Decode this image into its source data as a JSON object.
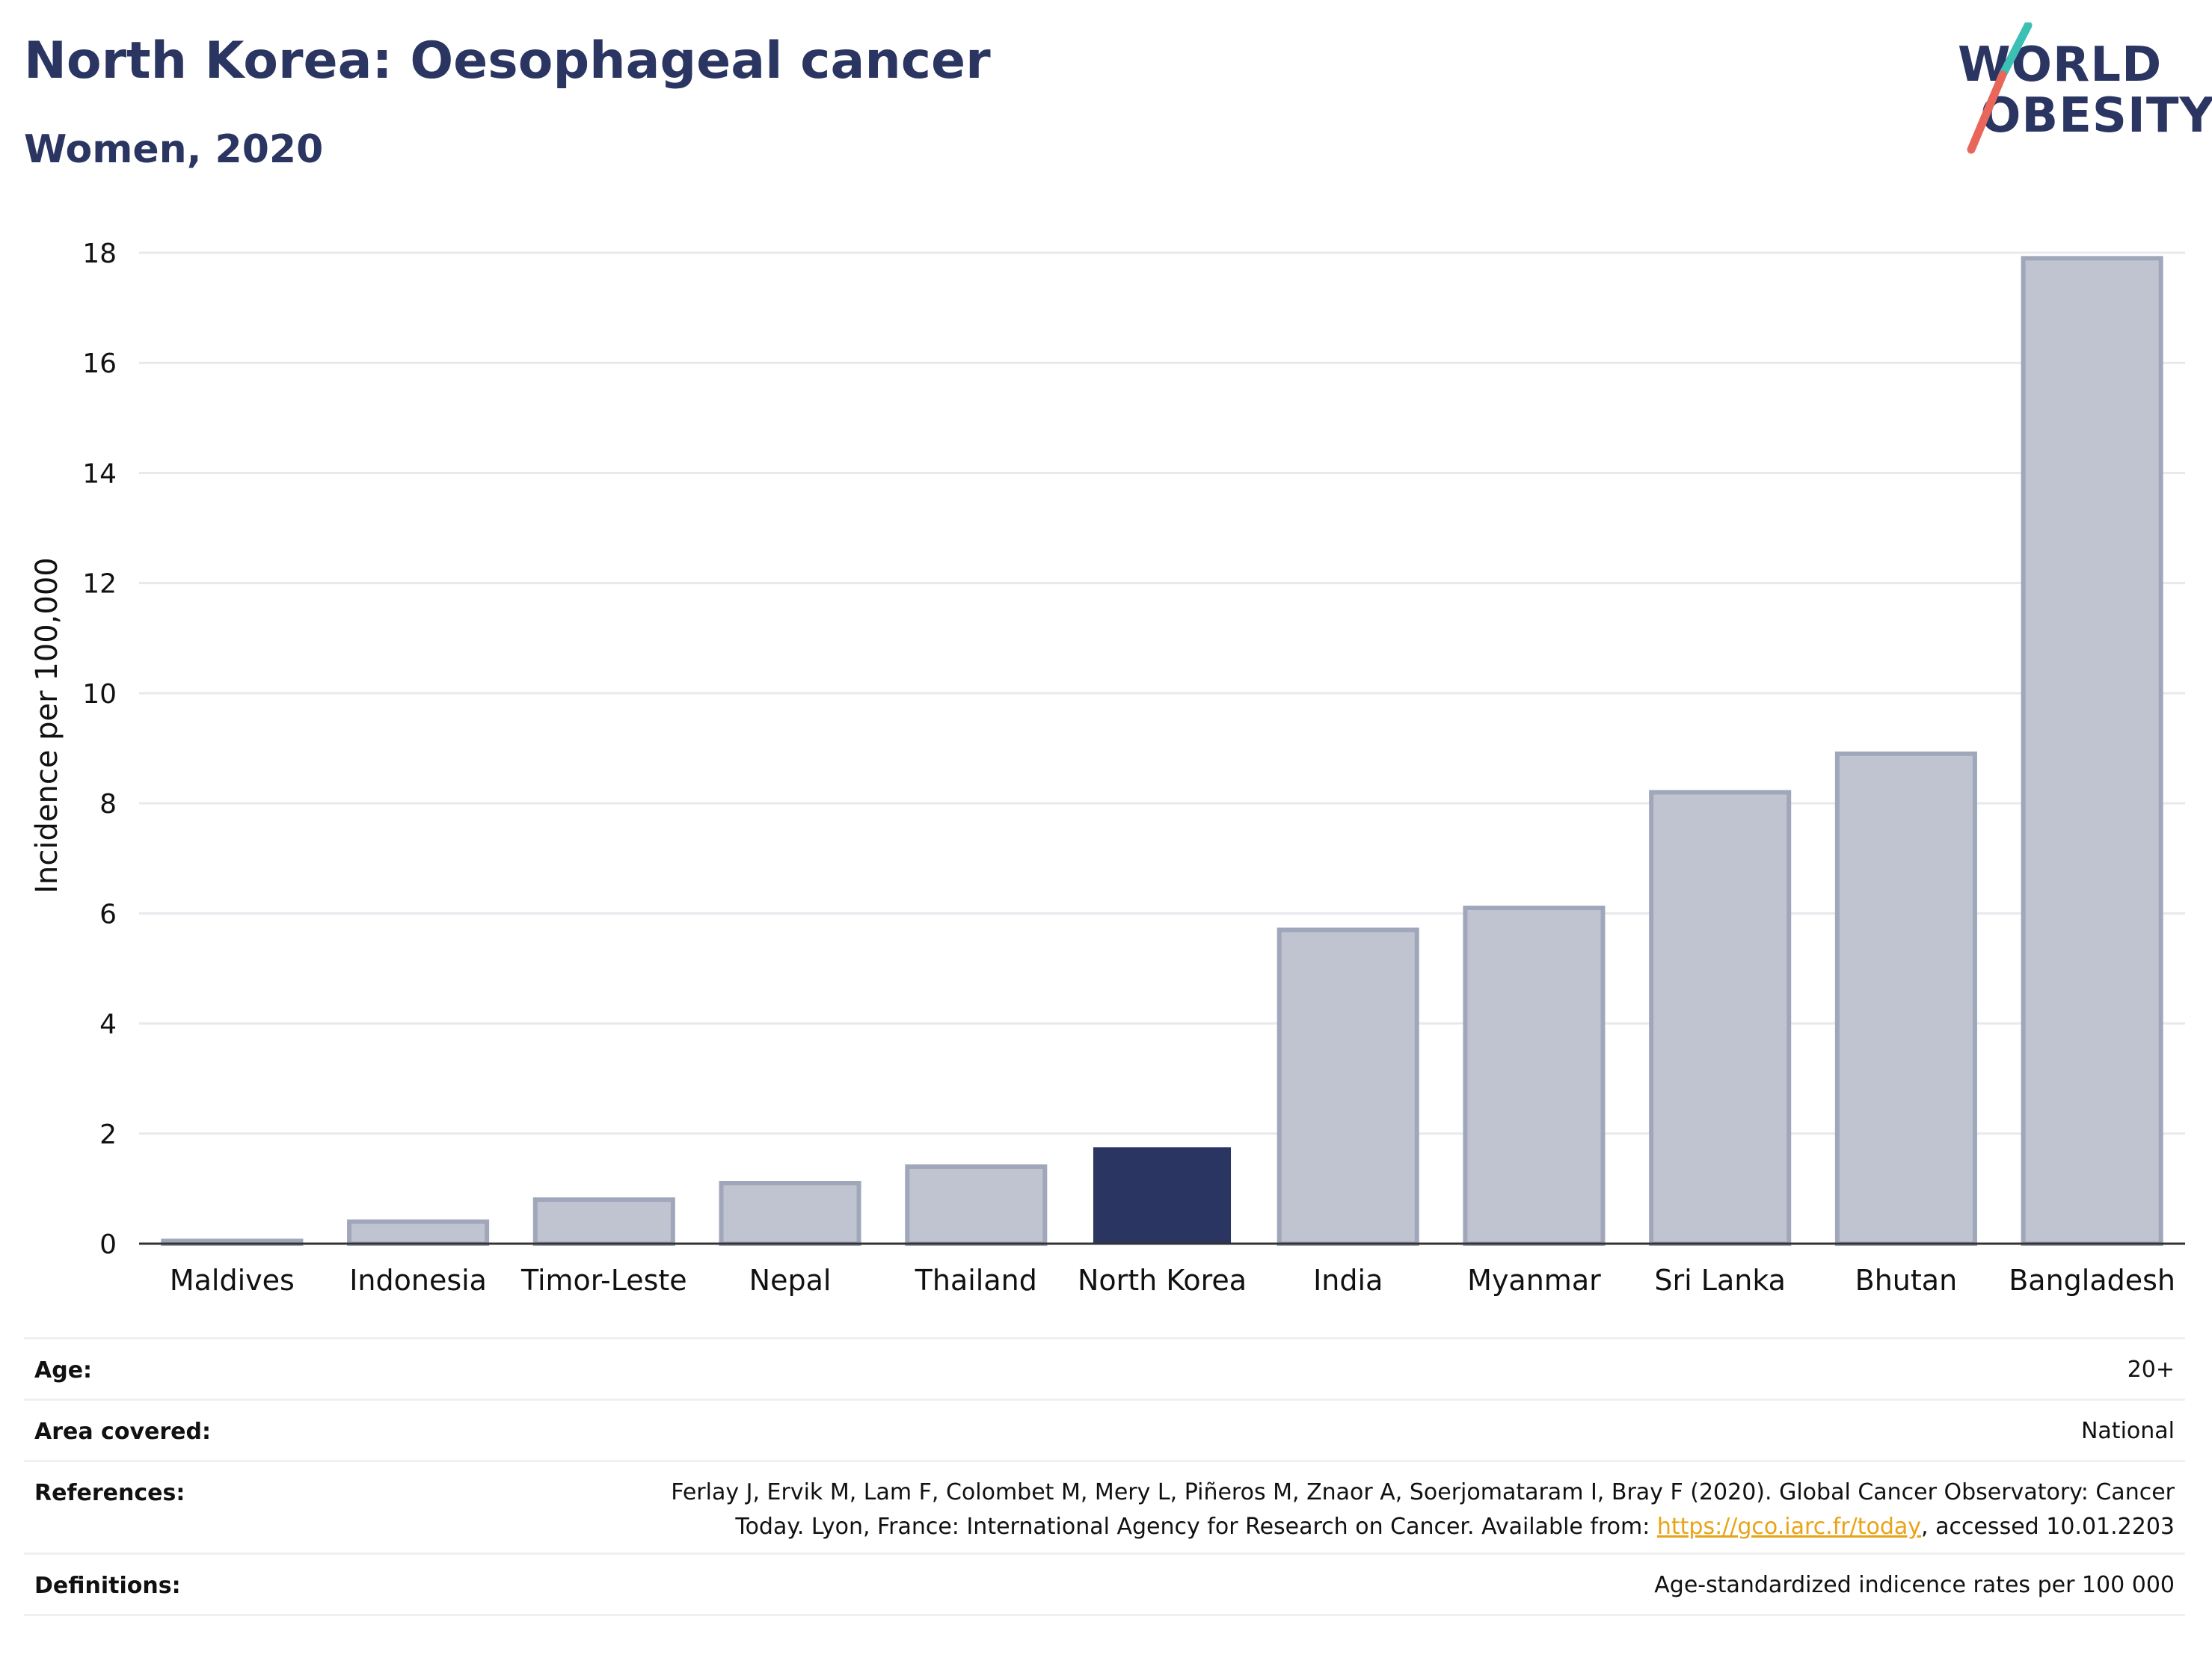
{
  "header": {
    "title": "North Korea: Oesophageal cancer",
    "subtitle": "Women, 2020"
  },
  "logo": {
    "line1": "WORLD",
    "line2": "OBESITY",
    "colors": {
      "text": "#2b3561",
      "slash_top": "#3cbfb4",
      "slash_bottom": "#e8675a"
    }
  },
  "chart_data": {
    "type": "bar",
    "categories": [
      "Maldives",
      "Indonesia",
      "Timor-Leste",
      "Nepal",
      "Thailand",
      "North Korea",
      "India",
      "Myanmar",
      "Sri Lanka",
      "Bhutan",
      "Bangladesh"
    ],
    "values": [
      0.05,
      0.4,
      0.8,
      1.1,
      1.4,
      1.75,
      5.7,
      6.1,
      8.2,
      8.9,
      17.9
    ],
    "highlight": "North Korea",
    "title": "North Korea: Oesophageal cancer",
    "subtitle": "Women, 2020",
    "xlabel": "",
    "ylabel": "Incidence per 100,000",
    "ylim": [
      0,
      18
    ],
    "yticks": [
      0,
      2,
      4,
      6,
      8,
      10,
      12,
      14,
      16,
      18
    ],
    "grid": true,
    "colors": {
      "bar": "#c0c4d1",
      "bar_edge": "#a1a7bb",
      "highlight": "#2b3561",
      "grid": "#e8e9ee",
      "axis": "#333333"
    }
  },
  "metadata": [
    {
      "key": "Age:",
      "value": "20+"
    },
    {
      "key": "Area covered:",
      "value": "National"
    },
    {
      "key": "References:",
      "value_line1": "Ferlay J, Ervik M, Lam F, Colombet M, Mery L, Piñeros M, Znaor A, Soerjomataram I, Bray F (2020). Global Cancer Observatory: Cancer",
      "value_line2_prefix": "Today. Lyon, France: International Agency for Research on Cancer. Available from: ",
      "link_text": "https://gco.iarc.fr/today",
      "value_line2_suffix": ", accessed 10.01.2203"
    },
    {
      "key": "Definitions:",
      "value": "Age-standardized indicence rates per 100 000"
    }
  ]
}
